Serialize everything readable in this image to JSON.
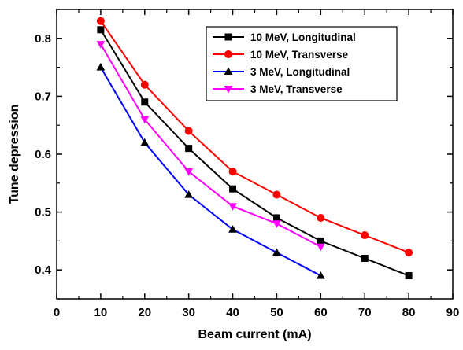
{
  "chart_data": {
    "type": "line",
    "title": "",
    "xlabel": "Beam current (mA)",
    "ylabel": "Tune depression",
    "xlim": [
      0,
      90
    ],
    "ylim": [
      0.35,
      0.85
    ],
    "xticks": [
      0,
      10,
      20,
      30,
      40,
      50,
      60,
      70,
      80,
      90
    ],
    "yticks": [
      0.4,
      0.5,
      0.6,
      0.7,
      0.8
    ],
    "xtick_labels": [
      "0",
      "10",
      "20",
      "30",
      "40",
      "50",
      "60",
      "70",
      "80",
      "90"
    ],
    "ytick_labels": [
      "0.4",
      "0.5",
      "0.6",
      "0.7",
      "0.8"
    ],
    "grid": false,
    "legend_position": "top-right",
    "series": [
      {
        "name": "10 MeV, Longitudinal",
        "color": "#000000",
        "marker": "square",
        "x": [
          10,
          20,
          30,
          40,
          50,
          60,
          70,
          80
        ],
        "y": [
          0.815,
          0.69,
          0.61,
          0.54,
          0.49,
          0.45,
          0.42,
          0.39
        ]
      },
      {
        "name": "10 MeV, Transverse",
        "color": "#ff0000",
        "marker": "circle",
        "x": [
          10,
          20,
          30,
          40,
          50,
          60,
          70,
          80
        ],
        "y": [
          0.83,
          0.72,
          0.64,
          0.57,
          0.53,
          0.49,
          0.46,
          0.43
        ]
      },
      {
        "name": "3 MeV, Longitudinal",
        "color": "#0000ff",
        "marker_color": "#000000",
        "marker": "triangle-up",
        "x": [
          10,
          20,
          30,
          40,
          50,
          60
        ],
        "y": [
          0.75,
          0.62,
          0.53,
          0.47,
          0.43,
          0.39
        ]
      },
      {
        "name": "3 MeV, Transverse",
        "color": "#ff00ff",
        "marker": "triangle-down",
        "x": [
          10,
          20,
          30,
          40,
          50,
          60
        ],
        "y": [
          0.79,
          0.66,
          0.57,
          0.51,
          0.48,
          0.44
        ]
      }
    ]
  }
}
